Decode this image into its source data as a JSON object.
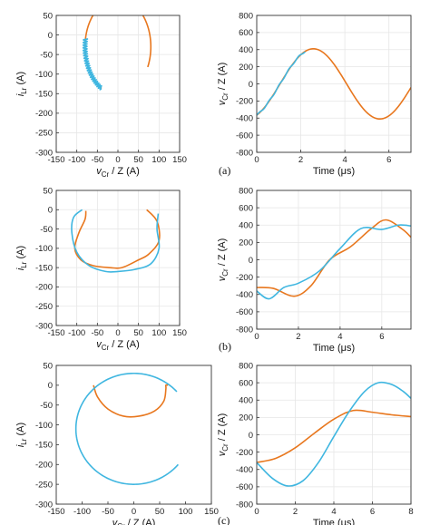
{
  "colors": {
    "orange": "#e8771e",
    "cyan": "#3fb6e0",
    "axis": "#333333",
    "grid": "#e6e6e6"
  },
  "chart_data": [
    {
      "type": "line",
      "panel": "(a)",
      "xlabel": "v_Cr / Z (A)",
      "ylabel": "i_Lr (A)",
      "xlim": [
        -150,
        150
      ],
      "ylim": [
        -300,
        50
      ],
      "xticks": [
        -150,
        -100,
        -50,
        0,
        50,
        100,
        150
      ],
      "yticks": [
        -300,
        -250,
        -200,
        -150,
        -100,
        -50,
        0,
        50
      ],
      "grid": true,
      "series": [
        {
          "color": "orange",
          "kind": "arc",
          "cx": 0,
          "cy": -30,
          "rx": 80,
          "ry": 123,
          "start_deg": 120,
          "end_deg": 385,
          "wiggle": 0
        },
        {
          "color": "cyan",
          "kind": "arc",
          "cx": 0,
          "cy": -30,
          "rx": 80,
          "ry": 123,
          "start_deg": 120,
          "end_deg": 190,
          "wiggle": 5
        }
      ],
      "panel_label": "(a)"
    },
    {
      "type": "line",
      "panel": "(a)",
      "xlabel": "Time (μs)",
      "ylabel": "v_Cr / Z (A)",
      "xlim": [
        0,
        7
      ],
      "ylim": [
        -800,
        800
      ],
      "xticks": [
        0,
        2,
        4,
        6
      ],
      "yticks": [
        -800,
        -600,
        -400,
        -200,
        0,
        200,
        400,
        600,
        800
      ],
      "grid": true,
      "series": [
        {
          "color": "orange",
          "kind": "func",
          "A": 410,
          "omega": 1.04,
          "phase": 0.47,
          "wiggle": 0
        },
        {
          "color": "cyan",
          "kind": "func",
          "A": 410,
          "omega": 1.04,
          "phase": 0.47,
          "wiggle": 8,
          "t_end": 2.2
        }
      ]
    },
    {
      "type": "line",
      "panel": "(b)",
      "xlabel": "v_Cr / Z (A)",
      "ylabel": "i_Lr (A)",
      "xlim": [
        -150,
        150
      ],
      "ylim": [
        -300,
        50
      ],
      "xticks": [
        -150,
        -100,
        -50,
        0,
        50,
        100,
        150
      ],
      "yticks": [
        -300,
        -250,
        -200,
        -150,
        -100,
        -50,
        0,
        50
      ],
      "grid": true,
      "series": [
        {
          "color": "orange",
          "kind": "points",
          "x": [
            -78,
            -80,
            -95,
            -105,
            -90,
            -60,
            -20,
            10,
            50,
            75,
            100,
            95,
            70
          ],
          "y": [
            -3,
            -25,
            -60,
            -100,
            -130,
            -145,
            -150,
            -150,
            -130,
            -115,
            -80,
            -30,
            0
          ]
        },
        {
          "color": "cyan",
          "kind": "points",
          "x": [
            -87,
            -108,
            -112,
            -100,
            -70,
            -30,
            0,
            40,
            80,
            100,
            95,
            98
          ],
          "y": [
            0,
            -20,
            -60,
            -110,
            -145,
            -160,
            -160,
            -155,
            -140,
            -100,
            -50,
            -10
          ]
        }
      ],
      "panel_label": "(b)"
    },
    {
      "type": "line",
      "panel": "(b)",
      "xlabel": "Time (μs)",
      "ylabel": "v_Cr / Z (A)",
      "xlim": [
        0,
        7.4
      ],
      "ylim": [
        -800,
        800
      ],
      "xticks": [
        0,
        2,
        4,
        6
      ],
      "yticks": [
        -800,
        -600,
        -400,
        -200,
        0,
        200,
        400,
        600,
        800
      ],
      "grid": true,
      "series": [
        {
          "color": "orange",
          "kind": "points",
          "x": [
            0,
            0.8,
            1.8,
            2.6,
            3.5,
            4.5,
            5.5,
            6.2,
            7.0,
            7.4
          ],
          "y": [
            -320,
            -330,
            -420,
            -300,
            0,
            150,
            360,
            460,
            350,
            260
          ]
        },
        {
          "color": "cyan",
          "kind": "points",
          "x": [
            0,
            0.6,
            1.3,
            2.0,
            3.0,
            4.0,
            5.0,
            6.0,
            6.8,
            7.4
          ],
          "y": [
            -360,
            -450,
            -320,
            -270,
            -130,
            130,
            360,
            350,
            400,
            390
          ]
        }
      ]
    },
    {
      "type": "line",
      "panel": "(c)",
      "xlabel": "v_Cr / Z (A)",
      "ylabel": "i_Lr (A)",
      "xlim": [
        -150,
        150
      ],
      "ylim": [
        -300,
        50
      ],
      "xticks": [
        -150,
        -100,
        -50,
        0,
        50,
        100,
        150
      ],
      "yticks": [
        -300,
        -250,
        -200,
        -150,
        -100,
        -50,
        0,
        50
      ],
      "grid": false,
      "series": [
        {
          "color": "orange",
          "kind": "points",
          "x": [
            -78,
            -70,
            -50,
            -20,
            10,
            40,
            58,
            62,
            62,
            66
          ],
          "y": [
            0,
            -30,
            -60,
            -78,
            -78,
            -65,
            -40,
            -10,
            0,
            0
          ]
        },
        {
          "color": "cyan",
          "kind": "arc",
          "cx": 0,
          "cy": -110,
          "rx": 112,
          "ry": 140,
          "start_deg": 40,
          "end_deg": 318,
          "wiggle": 0
        }
      ],
      "panel_label": "(c)"
    },
    {
      "type": "line",
      "panel": "(c)",
      "xlabel": "Time (μs)",
      "ylabel": "v_Cr / Z (A)",
      "xlim": [
        0,
        8
      ],
      "ylim": [
        -800,
        800
      ],
      "xticks": [
        0,
        2,
        4,
        6,
        8
      ],
      "yticks": [
        -800,
        -600,
        -400,
        -200,
        0,
        200,
        400,
        600,
        800
      ],
      "grid": true,
      "series": [
        {
          "color": "orange",
          "kind": "points",
          "x": [
            0,
            1,
            2,
            3,
            4,
            5,
            6,
            7,
            8
          ],
          "y": [
            -320,
            -270,
            -150,
            20,
            180,
            280,
            260,
            230,
            210
          ]
        },
        {
          "color": "cyan",
          "kind": "points",
          "x": [
            0,
            0.8,
            1.6,
            2.4,
            3.2,
            4.0,
            4.8,
            5.6,
            6.3,
            7.0,
            7.6,
            8.0
          ],
          "y": [
            -320,
            -500,
            -590,
            -530,
            -320,
            -20,
            270,
            500,
            600,
            580,
            500,
            420
          ]
        }
      ]
    }
  ]
}
